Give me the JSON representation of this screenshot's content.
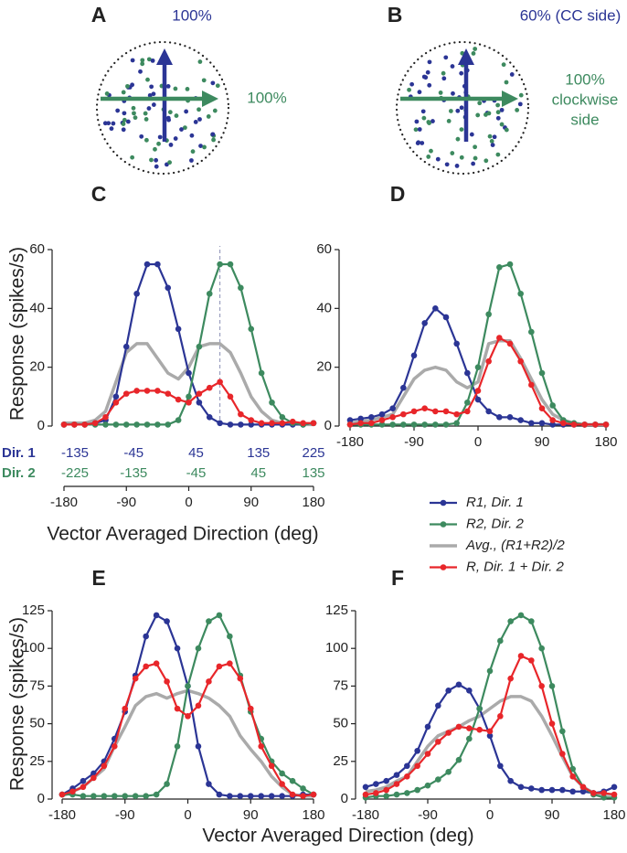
{
  "diagrams": [
    {
      "label": "A",
      "top_label": "100%",
      "right_label": [
        "100%"
      ]
    },
    {
      "label": "B",
      "top_label": "60% (CC side)",
      "right_label": [
        "100%",
        "clockwise",
        "side"
      ]
    }
  ],
  "chart_data": [
    {
      "type": "line",
      "title": "C",
      "ylabel": "Response (spikes/s)",
      "xlabel": "Vector Averaged Direction (deg)",
      "x": [
        -180,
        -165,
        -150,
        -135,
        -120,
        -105,
        -90,
        -75,
        -60,
        -45,
        -30,
        -15,
        0,
        15,
        30,
        45,
        60,
        75,
        90,
        105,
        120,
        135,
        150,
        165,
        180
      ],
      "xlim": [
        -180,
        180
      ],
      "xticks": [
        -180,
        -90,
        0,
        90,
        180
      ],
      "ylim": [
        0,
        60
      ],
      "yticks": [
        0,
        20,
        40,
        60
      ],
      "ref_line_x": 45,
      "dir_rows": [
        {
          "label": "Dir. 1",
          "color": "#2b3595",
          "ticks": [
            -135,
            -45,
            45,
            135,
            225
          ]
        },
        {
          "label": "Dir. 2",
          "color": "#3d8a5f",
          "ticks": [
            -225,
            -135,
            -45,
            45,
            135
          ]
        }
      ],
      "series": [
        {
          "name": "R1, Dir. 1",
          "color": "#2b3595",
          "markers": true,
          "values": [
            0.5,
            0.5,
            0.5,
            1,
            2,
            10,
            27,
            45,
            55,
            55,
            47,
            33,
            18,
            8,
            3,
            1,
            0.5,
            0.5,
            0.5,
            0.5,
            0.5,
            0.5,
            0.5,
            0.5,
            1
          ]
        },
        {
          "name": "R2, Dir. 2",
          "color": "#3d8a5f",
          "markers": true,
          "values": [
            0.5,
            0.5,
            0.5,
            0.5,
            0.5,
            0.5,
            0.5,
            0.5,
            0.5,
            0.5,
            0.5,
            2,
            10,
            27,
            45,
            55,
            55,
            47,
            33,
            18,
            8,
            3,
            1,
            0.5,
            1
          ]
        },
        {
          "name": "Avg., (R1+R2)/2",
          "color": "#aaaaaa",
          "markers": false,
          "values": [
            1,
            1,
            1,
            2,
            5,
            15,
            25,
            28,
            28,
            23,
            18,
            16,
            20,
            27,
            28,
            28,
            25,
            18,
            10,
            5,
            2,
            1,
            1,
            0.5,
            0.5
          ]
        },
        {
          "name": "R, Dir. 1 + Dir. 2",
          "color": "#e8262a",
          "markers": true,
          "values": [
            0.5,
            0.5,
            0.5,
            1,
            3,
            8,
            11,
            12,
            12,
            12,
            11,
            9,
            8,
            11,
            13,
            15,
            10,
            4,
            2,
            1,
            1,
            1,
            1.5,
            1,
            1
          ]
        }
      ]
    },
    {
      "type": "line",
      "title": "D",
      "x": [
        -180,
        -165,
        -150,
        -135,
        -120,
        -105,
        -90,
        -75,
        -60,
        -45,
        -30,
        -15,
        0,
        15,
        30,
        45,
        60,
        75,
        90,
        105,
        120,
        135,
        150,
        165,
        180
      ],
      "xlim": [
        -180,
        180
      ],
      "xticks": [
        -180,
        -90,
        0,
        90,
        180
      ],
      "ylim": [
        0,
        60
      ],
      "yticks": [
        0,
        20,
        40,
        60
      ],
      "series": [
        {
          "name": "R1, Dir. 1",
          "color": "#2b3595",
          "markers": true,
          "values": [
            2,
            2.5,
            3,
            4,
            6,
            13,
            24,
            35,
            40,
            37,
            28,
            18,
            9,
            5,
            3,
            3,
            2,
            1,
            1,
            0.5,
            0.5,
            0.5,
            0.5,
            0.5,
            0.5
          ]
        },
        {
          "name": "R2, Dir. 2",
          "color": "#3d8a5f",
          "markers": true,
          "values": [
            0.5,
            0.5,
            0.5,
            0.5,
            0.5,
            0.5,
            0.5,
            0.5,
            0.5,
            0.5,
            1,
            8,
            20,
            38,
            54,
            55,
            45,
            32,
            18,
            7,
            2,
            1,
            0.5,
            0.5,
            0.5
          ]
        },
        {
          "name": "Avg., (R1+R2)/2",
          "color": "#aaaaaa",
          "markers": false,
          "values": [
            1,
            1.5,
            2,
            3,
            4,
            10,
            16,
            19,
            20,
            19,
            15,
            13,
            15,
            28,
            29,
            29,
            23,
            16,
            9,
            4,
            2,
            1,
            0.5,
            0.5,
            0.5
          ]
        },
        {
          "name": "R, Dir. 1 + Dir. 2",
          "color": "#e8262a",
          "markers": true,
          "values": [
            0.5,
            1,
            1,
            2,
            3,
            4,
            5,
            6,
            5,
            5,
            4,
            5,
            12,
            22,
            30,
            28,
            22,
            14,
            6,
            2,
            1,
            0.5,
            0.5,
            0.5,
            0.5
          ]
        }
      ]
    },
    {
      "type": "line",
      "title": "E",
      "ylabel": "Response (spikes/s)",
      "xlabel": "Vector Averaged Direction (deg)",
      "x": [
        -180,
        -165,
        -150,
        -135,
        -120,
        -105,
        -90,
        -75,
        -60,
        -45,
        -30,
        -15,
        0,
        15,
        30,
        45,
        60,
        75,
        90,
        105,
        120,
        135,
        150,
        165,
        180
      ],
      "xlim": [
        -180,
        180
      ],
      "xticks": [
        -180,
        -90,
        0,
        90,
        180
      ],
      "ylim": [
        0,
        125
      ],
      "yticks": [
        0,
        25,
        50,
        75,
        100,
        125
      ],
      "series": [
        {
          "name": "R1, Dir. 1",
          "color": "#2b3595",
          "markers": true,
          "values": [
            3,
            7,
            12,
            17,
            25,
            40,
            58,
            82,
            108,
            122,
            118,
            100,
            75,
            35,
            10,
            3,
            2,
            2,
            2,
            2,
            2,
            2,
            2,
            3,
            3
          ]
        },
        {
          "name": "R2, Dir. 2",
          "color": "#3d8a5f",
          "markers": true,
          "values": [
            3,
            3,
            2,
            2,
            2,
            2,
            2,
            2,
            2,
            3,
            10,
            35,
            75,
            100,
            118,
            122,
            108,
            82,
            58,
            40,
            25,
            17,
            12,
            7,
            3
          ]
        },
        {
          "name": "Avg., (R1+R2)/2",
          "color": "#aaaaaa",
          "markers": false,
          "values": [
            2,
            5,
            8,
            14,
            20,
            35,
            48,
            62,
            68,
            70,
            67,
            70,
            72,
            70,
            67,
            62,
            55,
            42,
            33,
            25,
            15,
            8,
            3,
            2,
            2
          ]
        },
        {
          "name": "R, Dir. 1 + Dir. 2",
          "color": "#e8262a",
          "markers": true,
          "values": [
            3,
            5,
            8,
            14,
            22,
            35,
            60,
            80,
            88,
            90,
            78,
            60,
            55,
            62,
            78,
            88,
            90,
            80,
            60,
            35,
            22,
            10,
            3,
            2,
            3
          ]
        }
      ]
    },
    {
      "type": "line",
      "title": "F",
      "x": [
        -180,
        -165,
        -150,
        -135,
        -120,
        -105,
        -90,
        -75,
        -60,
        -45,
        -30,
        -15,
        0,
        15,
        30,
        45,
        60,
        75,
        90,
        105,
        120,
        135,
        150,
        165,
        180
      ],
      "xlim": [
        -180,
        180
      ],
      "xticks": [
        -180,
        -90,
        0,
        90,
        180
      ],
      "ylim": [
        0,
        125
      ],
      "yticks": [
        0,
        25,
        50,
        75,
        100,
        125
      ],
      "series": [
        {
          "name": "R1, Dir. 1",
          "color": "#2b3595",
          "markers": true,
          "values": [
            8,
            10,
            12,
            16,
            22,
            32,
            48,
            62,
            72,
            76,
            72,
            60,
            42,
            22,
            12,
            8,
            7,
            6,
            6,
            6,
            5,
            5,
            4,
            5,
            8
          ]
        },
        {
          "name": "R2, Dir. 2",
          "color": "#3d8a5f",
          "markers": true,
          "values": [
            1,
            2,
            2,
            3,
            4,
            6,
            9,
            13,
            18,
            26,
            40,
            60,
            85,
            105,
            118,
            122,
            118,
            100,
            75,
            45,
            20,
            8,
            3,
            1,
            1
          ]
        },
        {
          "name": "Avg., (R1+R2)/2",
          "color": "#aaaaaa",
          "markers": false,
          "values": [
            5,
            6,
            8,
            12,
            15,
            25,
            35,
            42,
            45,
            48,
            52,
            55,
            60,
            65,
            68,
            68,
            65,
            55,
            42,
            28,
            15,
            8,
            4,
            3,
            3
          ]
        },
        {
          "name": "R, Dir. 1 + Dir. 2",
          "color": "#e8262a",
          "markers": true,
          "values": [
            3,
            4,
            6,
            10,
            15,
            22,
            30,
            38,
            44,
            48,
            47,
            46,
            45,
            55,
            80,
            95,
            92,
            75,
            50,
            30,
            15,
            8,
            4,
            4,
            3
          ]
        }
      ]
    }
  ]
}
